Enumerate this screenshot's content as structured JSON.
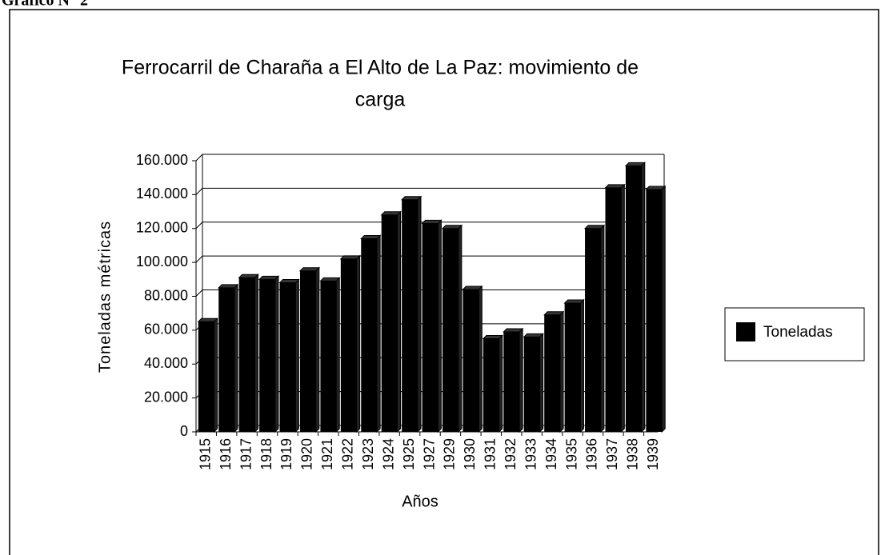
{
  "chart_data": {
    "type": "bar",
    "figure_label": "Gráfico N° 2",
    "title": [
      "Ferrocarril de Charaña a El Alto de La Paz: movimiento de",
      "carga"
    ],
    "y_label": "Toneladas métricas",
    "x_label": "Años",
    "categories": [
      "1915",
      "1916",
      "1917",
      "1918",
      "1919",
      "1920",
      "1921",
      "1922",
      "1923",
      "1924",
      "1925",
      "1927",
      "1929",
      "1930",
      "1931",
      "1932",
      "1933",
      "1934",
      "1935",
      "1936",
      "1937",
      "1938",
      "1939"
    ],
    "series": [
      {
        "name": "Toneladas",
        "color": "#000000",
        "values": [
          65000,
          85000,
          91000,
          90000,
          88000,
          95000,
          89000,
          102000,
          114000,
          128000,
          137000,
          123000,
          120000,
          84000,
          55000,
          59000,
          56000,
          69000,
          76000,
          120000,
          144000,
          157000,
          143000
        ]
      }
    ],
    "ylim": [
      0,
      160000
    ],
    "yticks": [
      0,
      {
        "value": 20000,
        "label": "20.000"
      },
      {
        "value": 40000,
        "label": "40.000"
      },
      {
        "value": 60000,
        "label": "60.000"
      },
      {
        "value": 80000,
        "label": "80.000"
      },
      {
        "value": 100000,
        "label": "100.000"
      },
      {
        "value": 120000,
        "label": "120.000"
      },
      {
        "value": 140000,
        "label": "140.000"
      },
      {
        "value": 160000,
        "label": "160.000"
      }
    ],
    "grid": true,
    "legend": "right"
  }
}
